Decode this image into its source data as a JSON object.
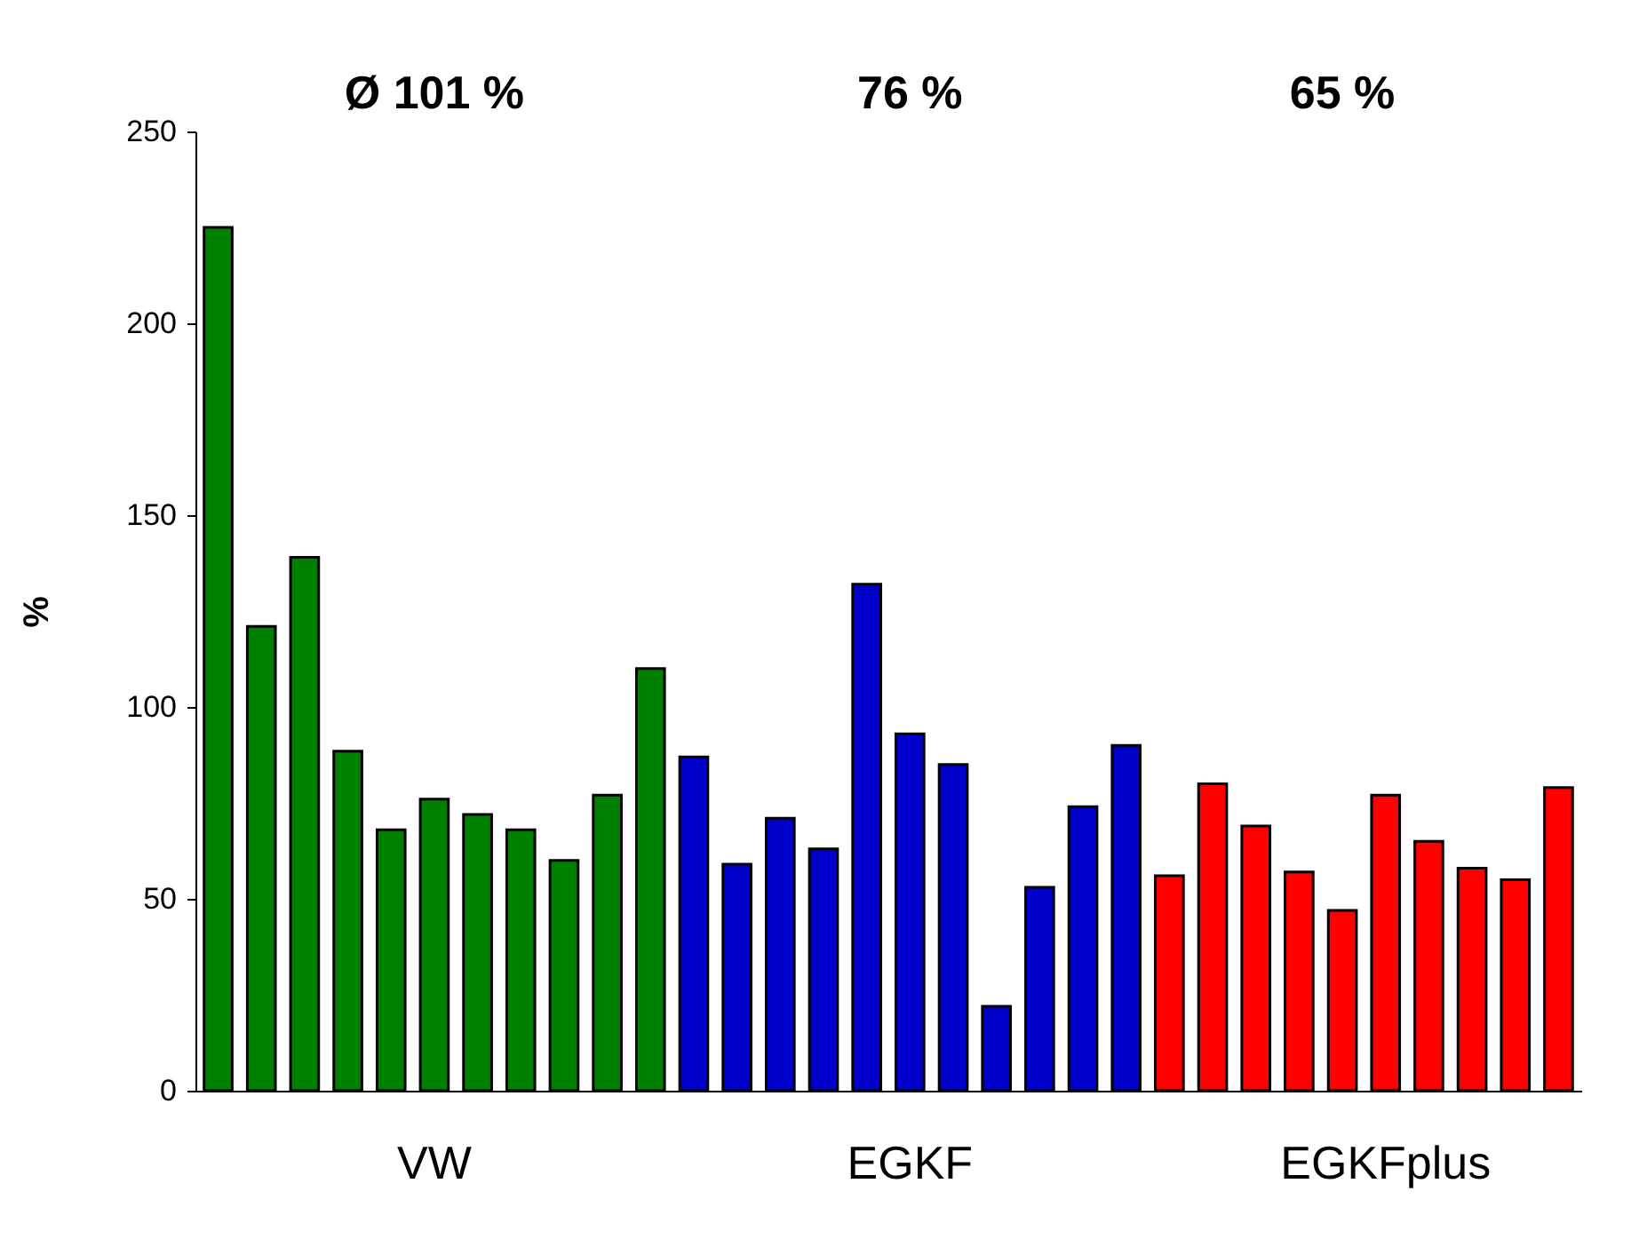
{
  "chart_data": {
    "type": "bar",
    "ylabel": "%",
    "categories": [
      null,
      null,
      null,
      null,
      null,
      "VW",
      null,
      null,
      null,
      null,
      null,
      null,
      null,
      null,
      null,
      null,
      "EGKF",
      null,
      null,
      null,
      null,
      null,
      null,
      null,
      null,
      null,
      null,
      "EGKFplus",
      null,
      null,
      null,
      null
    ],
    "values": [
      225,
      121,
      139,
      88.5,
      68,
      76,
      72,
      68,
      60,
      77,
      110,
      87,
      59,
      71,
      63,
      132,
      93,
      85,
      22,
      53,
      74,
      90,
      56,
      80,
      69,
      57,
      47,
      77,
      65,
      58,
      55,
      79
    ],
    "colors": [
      "#008000",
      "#008000",
      "#008000",
      "#008000",
      "#008000",
      "#008000",
      "#008000",
      "#008000",
      "#008000",
      "#008000",
      "#008000",
      "#0000cc",
      "#0000cc",
      "#0000cc",
      "#0000cc",
      "#0000cc",
      "#0000cc",
      "#0000cc",
      "#0000cc",
      "#0000cc",
      "#0000cc",
      "#0000cc",
      "#ff0000",
      "#ff0000",
      "#ff0000",
      "#ff0000",
      "#ff0000",
      "#ff0000",
      "#ff0000",
      "#ff0000",
      "#ff0000",
      "#ff0000"
    ],
    "ylim": [
      0,
      250
    ],
    "yticks": [
      0,
      50,
      100,
      150,
      200,
      250
    ],
    "grid": false,
    "annotations": [
      "Ø  101 %",
      "76 %",
      "65 %"
    ]
  }
}
